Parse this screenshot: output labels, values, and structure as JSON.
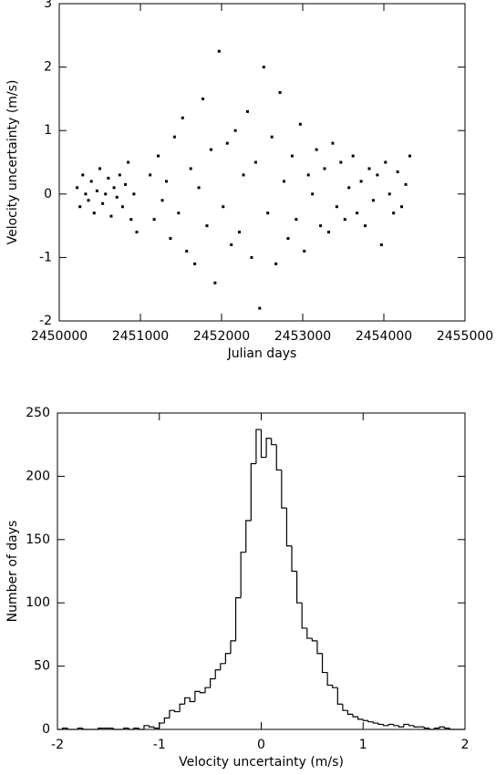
{
  "chart_data": [
    {
      "type": "scatter",
      "xlabel": "Julian days",
      "ylabel": "Velocity uncertainty (m/s)",
      "xlim": [
        2450000,
        2455000
      ],
      "xticks": [
        2450000,
        2451000,
        2452000,
        2453000,
        2454000,
        2455000
      ],
      "ylim": [
        -2,
        3
      ],
      "yticks": [
        -2,
        -1,
        0,
        1,
        2,
        3
      ],
      "color": "#000000",
      "x": [
        2450220,
        2450255,
        2450290,
        2450325,
        2450360,
        2450395,
        2450430,
        2450465,
        2450500,
        2450535,
        2450570,
        2450605,
        2450640,
        2450675,
        2450710,
        2450745,
        2450780,
        2450815,
        2450850,
        2450885,
        2450920,
        2450955,
        2451120,
        2451170,
        2451220,
        2451270,
        2451320,
        2451370,
        2451420,
        2451470,
        2451520,
        2451570,
        2451620,
        2451670,
        2451720,
        2451770,
        2451820,
        2451870,
        2451920,
        2451970,
        2452020,
        2452070,
        2452120,
        2452170,
        2452220,
        2452270,
        2452320,
        2452370,
        2452420,
        2452470,
        2452520,
        2452570,
        2452620,
        2452670,
        2452720,
        2452770,
        2452820,
        2452870,
        2452920,
        2452970,
        2453020,
        2453070,
        2453120,
        2453170,
        2453220,
        2453270,
        2453320,
        2453370,
        2453420,
        2453470,
        2453520,
        2453570,
        2453620,
        2453670,
        2453720,
        2453770,
        2453820,
        2453870,
        2453920,
        2453970,
        2454020,
        2454070,
        2454120,
        2454170,
        2454220,
        2454270,
        2454320
      ],
      "y": [
        0.1,
        -0.2,
        0.3,
        0.0,
        -0.1,
        0.2,
        -0.3,
        0.05,
        0.4,
        -0.15,
        0.0,
        0.25,
        -0.35,
        0.1,
        -0.05,
        0.3,
        -0.2,
        0.15,
        0.5,
        -0.4,
        0.0,
        -0.6,
        0.3,
        -0.4,
        0.6,
        -0.1,
        0.2,
        -0.7,
        0.9,
        -0.3,
        1.2,
        -0.9,
        0.4,
        -1.1,
        0.1,
        1.5,
        -0.5,
        0.7,
        -1.4,
        2.25,
        -0.2,
        0.8,
        -0.8,
        1.0,
        -0.6,
        0.3,
        1.3,
        -1.0,
        0.5,
        -1.8,
        2.0,
        -0.3,
        0.9,
        -1.1,
        1.6,
        0.2,
        -0.7,
        0.6,
        -0.4,
        1.1,
        -0.9,
        0.3,
        0.0,
        0.7,
        -0.5,
        0.4,
        -0.6,
        0.8,
        -0.2,
        0.5,
        -0.4,
        0.1,
        0.6,
        -0.3,
        0.2,
        -0.5,
        0.4,
        -0.1,
        0.3,
        -0.8,
        0.5,
        0.0,
        -0.3,
        0.35,
        -0.2,
        0.15,
        0.6
      ]
    },
    {
      "type": "histogram",
      "xlabel": "Velocity uncertainty (m/s)",
      "ylabel": "Number of days",
      "xlim": [
        -2,
        2
      ],
      "xticks": [
        -2,
        -1,
        0,
        1,
        2
      ],
      "ylim": [
        0,
        250
      ],
      "yticks": [
        0,
        50,
        100,
        150,
        200,
        250
      ],
      "color": "#000000",
      "bins": [
        -2,
        -1.95,
        -1.9,
        -1.85,
        -1.8,
        -1.75,
        -1.7,
        -1.65,
        -1.6,
        -1.55,
        -1.5,
        -1.45,
        -1.4,
        -1.35,
        -1.3,
        -1.25,
        -1.2,
        -1.15,
        -1.1,
        -1.05,
        -1,
        -0.95,
        -0.9,
        -0.85,
        -0.8,
        -0.75,
        -0.7,
        -0.65,
        -0.6,
        -0.55,
        -0.5,
        -0.45,
        -0.4,
        -0.35,
        -0.3,
        -0.25,
        -0.2,
        -0.15,
        -0.1,
        -0.05,
        0,
        0.05,
        0.1,
        0.15,
        0.2,
        0.25,
        0.3,
        0.35,
        0.4,
        0.45,
        0.5,
        0.55,
        0.6,
        0.65,
        0.7,
        0.75,
        0.8,
        0.85,
        0.9,
        0.95,
        1,
        1.05,
        1.1,
        1.15,
        1.2,
        1.25,
        1.3,
        1.35,
        1.4,
        1.45,
        1.5,
        1.55,
        1.6,
        1.65,
        1.7,
        1.75,
        1.8,
        1.85,
        1.9,
        1.95,
        2
      ],
      "counts": [
        0,
        1,
        0,
        0,
        1,
        0,
        0,
        0,
        1,
        1,
        1,
        0,
        0,
        1,
        0,
        1,
        0,
        3,
        2,
        1,
        5,
        9,
        15,
        14,
        20,
        25,
        22,
        30,
        29,
        33,
        40,
        47,
        52,
        60,
        70,
        104,
        140,
        165,
        210,
        237,
        215,
        230,
        225,
        205,
        175,
        145,
        125,
        100,
        80,
        72,
        70,
        60,
        45,
        35,
        33,
        20,
        15,
        12,
        10,
        8,
        7,
        6,
        5,
        4,
        3,
        4,
        3,
        2,
        4,
        3,
        2,
        2,
        1,
        0,
        1,
        2,
        1,
        0,
        0,
        0
      ]
    }
  ]
}
